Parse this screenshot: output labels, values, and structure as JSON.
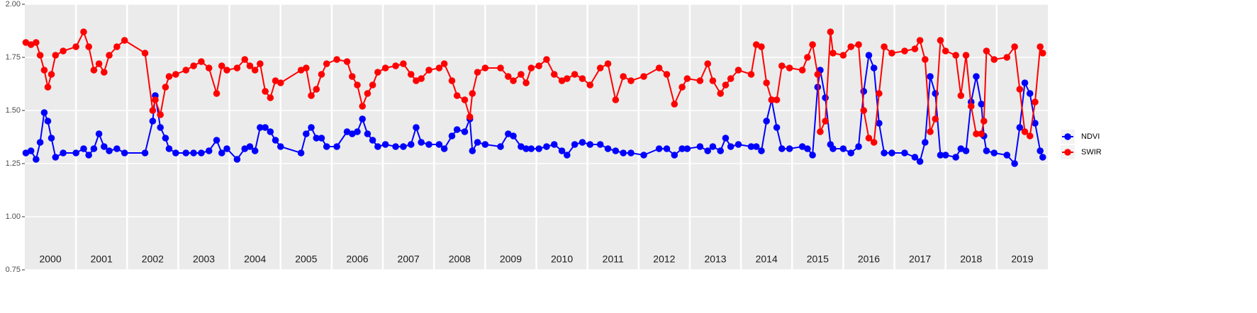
{
  "chart_data": {
    "type": "line",
    "x": [
      2000.02,
      2000.12,
      2000.22,
      2000.3,
      2000.38,
      2000.45,
      2000.52,
      2000.6,
      2000.75,
      2001.0,
      2001.15,
      2001.25,
      2001.35,
      2001.45,
      2001.55,
      2001.65,
      2001.8,
      2001.95,
      2002.35,
      2002.5,
      2002.55,
      2002.65,
      2002.75,
      2002.82,
      2002.95,
      2003.15,
      2003.3,
      2003.45,
      2003.6,
      2003.75,
      2003.85,
      2003.95,
      2004.15,
      2004.3,
      2004.4,
      2004.5,
      2004.6,
      2004.7,
      2004.8,
      2004.9,
      2005.0,
      2005.4,
      2005.5,
      2005.6,
      2005.7,
      2005.8,
      2005.9,
      2006.1,
      2006.3,
      2006.4,
      2006.5,
      2006.6,
      2006.7,
      2006.8,
      2006.9,
      2007.05,
      2007.25,
      2007.4,
      2007.55,
      2007.65,
      2007.75,
      2007.9,
      2008.1,
      2008.2,
      2008.35,
      2008.45,
      2008.6,
      2008.7,
      2008.75,
      2008.85,
      2009.0,
      2009.3,
      2009.45,
      2009.55,
      2009.7,
      2009.8,
      2009.9,
      2010.05,
      2010.2,
      2010.35,
      2010.5,
      2010.6,
      2010.75,
      2010.9,
      2011.05,
      2011.25,
      2011.4,
      2011.55,
      2011.7,
      2011.85,
      2012.1,
      2012.4,
      2012.55,
      2012.7,
      2012.85,
      2012.95,
      2013.2,
      2013.35,
      2013.45,
      2013.6,
      2013.7,
      2013.8,
      2013.95,
      2014.2,
      2014.3,
      2014.4,
      2014.5,
      2014.6,
      2014.7,
      2014.8,
      2014.95,
      2015.2,
      2015.3,
      2015.4,
      2015.5,
      2015.55,
      2015.65,
      2015.75,
      2015.8,
      2016.0,
      2016.15,
      2016.3,
      2016.4,
      2016.5,
      2016.6,
      2016.7,
      2016.8,
      2016.95,
      2017.2,
      2017.4,
      2017.5,
      2017.6,
      2017.7,
      2017.8,
      2017.9,
      2018.0,
      2018.2,
      2018.3,
      2018.4,
      2018.5,
      2018.6,
      2018.7,
      2018.75,
      2018.8,
      2018.95,
      2019.2,
      2019.35,
      2019.45,
      2019.55,
      2019.65,
      2019.75,
      2019.85,
      2019.9
    ],
    "series": [
      {
        "name": "NDVI",
        "color": "#0000ff",
        "values": [
          1.3,
          1.31,
          1.27,
          1.35,
          1.49,
          1.45,
          1.37,
          1.28,
          1.3,
          1.3,
          1.32,
          1.29,
          1.32,
          1.39,
          1.33,
          1.31,
          1.32,
          1.3,
          1.3,
          1.45,
          1.57,
          1.42,
          1.37,
          1.32,
          1.3,
          1.3,
          1.3,
          1.3,
          1.31,
          1.36,
          1.3,
          1.32,
          1.27,
          1.32,
          1.33,
          1.31,
          1.42,
          1.42,
          1.4,
          1.36,
          1.33,
          1.3,
          1.39,
          1.42,
          1.37,
          1.37,
          1.33,
          1.33,
          1.4,
          1.39,
          1.4,
          1.46,
          1.39,
          1.36,
          1.33,
          1.34,
          1.33,
          1.33,
          1.34,
          1.42,
          1.35,
          1.34,
          1.34,
          1.32,
          1.38,
          1.41,
          1.4,
          1.46,
          1.31,
          1.35,
          1.34,
          1.33,
          1.39,
          1.38,
          1.33,
          1.32,
          1.32,
          1.32,
          1.33,
          1.34,
          1.31,
          1.29,
          1.34,
          1.35,
          1.34,
          1.34,
          1.32,
          1.31,
          1.3,
          1.3,
          1.29,
          1.32,
          1.32,
          1.29,
          1.32,
          1.32,
          1.33,
          1.31,
          1.33,
          1.31,
          1.37,
          1.33,
          1.34,
          1.33,
          1.33,
          1.31,
          1.45,
          1.55,
          1.42,
          1.32,
          1.32,
          1.33,
          1.32,
          1.29,
          1.61,
          1.69,
          1.56,
          1.34,
          1.32,
          1.32,
          1.3,
          1.33,
          1.59,
          1.76,
          1.7,
          1.44,
          1.3,
          1.3,
          1.3,
          1.28,
          1.26,
          1.35,
          1.66,
          1.58,
          1.29,
          1.29,
          1.28,
          1.32,
          1.31,
          1.54,
          1.66,
          1.53,
          1.38,
          1.31,
          1.3,
          1.29,
          1.25,
          1.42,
          1.63,
          1.58,
          1.44,
          1.31,
          1.28
        ]
      },
      {
        "name": "SWIR",
        "color": "#ff0000",
        "values": [
          1.82,
          1.81,
          1.82,
          1.76,
          1.69,
          1.61,
          1.67,
          1.76,
          1.78,
          1.8,
          1.87,
          1.8,
          1.69,
          1.72,
          1.68,
          1.76,
          1.8,
          1.83,
          1.77,
          1.5,
          1.55,
          1.48,
          1.61,
          1.66,
          1.67,
          1.69,
          1.71,
          1.73,
          1.7,
          1.58,
          1.71,
          1.69,
          1.7,
          1.74,
          1.71,
          1.69,
          1.72,
          1.59,
          1.56,
          1.64,
          1.63,
          1.69,
          1.7,
          1.57,
          1.6,
          1.67,
          1.72,
          1.74,
          1.73,
          1.66,
          1.62,
          1.52,
          1.58,
          1.62,
          1.68,
          1.7,
          1.71,
          1.72,
          1.67,
          1.64,
          1.65,
          1.69,
          1.7,
          1.72,
          1.64,
          1.57,
          1.55,
          1.47,
          1.58,
          1.68,
          1.7,
          1.7,
          1.66,
          1.64,
          1.67,
          1.63,
          1.7,
          1.71,
          1.74,
          1.67,
          1.64,
          1.65,
          1.67,
          1.65,
          1.62,
          1.7,
          1.72,
          1.55,
          1.66,
          1.64,
          1.66,
          1.7,
          1.67,
          1.53,
          1.61,
          1.65,
          1.64,
          1.72,
          1.64,
          1.58,
          1.62,
          1.65,
          1.69,
          1.67,
          1.81,
          1.8,
          1.63,
          1.55,
          1.55,
          1.71,
          1.7,
          1.69,
          1.75,
          1.81,
          1.67,
          1.4,
          1.45,
          1.87,
          1.77,
          1.76,
          1.8,
          1.81,
          1.5,
          1.37,
          1.35,
          1.58,
          1.8,
          1.77,
          1.78,
          1.79,
          1.83,
          1.74,
          1.4,
          1.46,
          1.83,
          1.78,
          1.76,
          1.57,
          1.76,
          1.52,
          1.39,
          1.39,
          1.45,
          1.78,
          1.74,
          1.75,
          1.8,
          1.6,
          1.4,
          1.38,
          1.54,
          1.8,
          1.77
        ]
      }
    ],
    "xlim": [
      2000,
      2020
    ],
    "xticks": [
      2000,
      2001,
      2002,
      2003,
      2004,
      2005,
      2006,
      2007,
      2008,
      2009,
      2010,
      2011,
      2012,
      2013,
      2014,
      2015,
      2016,
      2017,
      2018,
      2019
    ],
    "ylim": [
      0.75,
      2.0
    ],
    "yticks": [
      {
        "value": 0.75,
        "label": "0.75"
      },
      {
        "value": 1.0,
        "label": "1.00"
      },
      {
        "value": 1.25,
        "label": "1.25"
      },
      {
        "value": 1.5,
        "label": "1.50"
      },
      {
        "value": 1.75,
        "label": "1.75"
      },
      {
        "value": 2.0,
        "label": "2.00"
      }
    ],
    "grid": true,
    "legend": "right"
  }
}
